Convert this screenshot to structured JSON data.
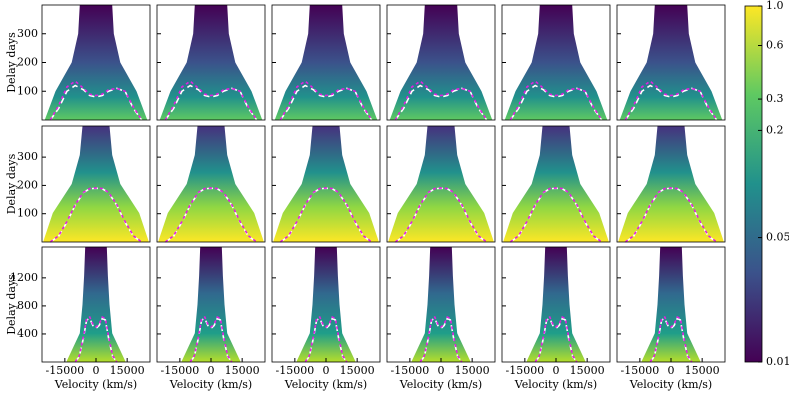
{
  "chart_data": [
    {
      "type": "heatmap",
      "ylabel": "Delay days",
      "xlim": [
        -26000,
        26000
      ],
      "ylim": [
        0,
        400
      ],
      "yticks": [
        100,
        200,
        300
      ],
      "x": [
        -22000,
        -18000,
        -14000,
        -10000,
        -6000,
        -3000,
        0,
        3000,
        6000,
        10000,
        14000,
        18000,
        22000
      ],
      "series": [
        {
          "color": "#ffffff",
          "values": [
            0,
            40,
            100,
            120,
            105,
            85,
            80,
            85,
            100,
            110,
            100,
            40,
            0
          ]
        },
        {
          "color": "#e020e0",
          "values": [
            0,
            50,
            115,
            135,
            110,
            90,
            85,
            90,
            105,
            110,
            100,
            45,
            0
          ]
        }
      ]
    },
    {
      "type": "heatmap",
      "ylabel": "Delay days",
      "xlim": [
        -26000,
        26000
      ],
      "ylim": [
        0,
        410
      ],
      "yticks": [
        100,
        200,
        300
      ],
      "x": [
        -22000,
        -18000,
        -14000,
        -10000,
        -6000,
        -3000,
        0,
        3000,
        6000,
        10000,
        14000,
        18000,
        22000
      ],
      "series": [
        {
          "color": "#ffffff",
          "values": [
            0,
            20,
            70,
            130,
            175,
            188,
            190,
            188,
            175,
            130,
            70,
            20,
            0
          ]
        },
        {
          "color": "#e020e0",
          "values": [
            0,
            22,
            72,
            132,
            176,
            189,
            191,
            189,
            176,
            132,
            72,
            22,
            0
          ]
        }
      ]
    },
    {
      "type": "heatmap",
      "ylabel": "Delay days",
      "xlabel": "Velocity (km/s)",
      "xlim": [
        -26000,
        26000
      ],
      "xticks": [
        -15000,
        0,
        15000
      ],
      "ylim": [
        0,
        1640
      ],
      "yticks": [
        400,
        800,
        1200
      ],
      "x": [
        -10000,
        -8000,
        -6000,
        -4500,
        -3000,
        -1500,
        0,
        1500,
        3000,
        4500,
        6000,
        8000,
        10000
      ],
      "series": [
        {
          "color": "#ffffff",
          "values": [
            0,
            80,
            350,
            600,
            620,
            520,
            480,
            520,
            620,
            600,
            350,
            80,
            0
          ]
        },
        {
          "color": "#e020e0",
          "values": [
            0,
            90,
            370,
            620,
            640,
            540,
            500,
            540,
            640,
            620,
            370,
            90,
            0
          ]
        }
      ]
    },
    {
      "type": "colorbar",
      "scale": "log",
      "lim": [
        0.01,
        1
      ],
      "ticks": [
        0.01,
        0.05,
        0.2,
        0.3,
        0.6,
        {
          "value": 1,
          "label": "1.0"
        }
      ]
    }
  ]
}
